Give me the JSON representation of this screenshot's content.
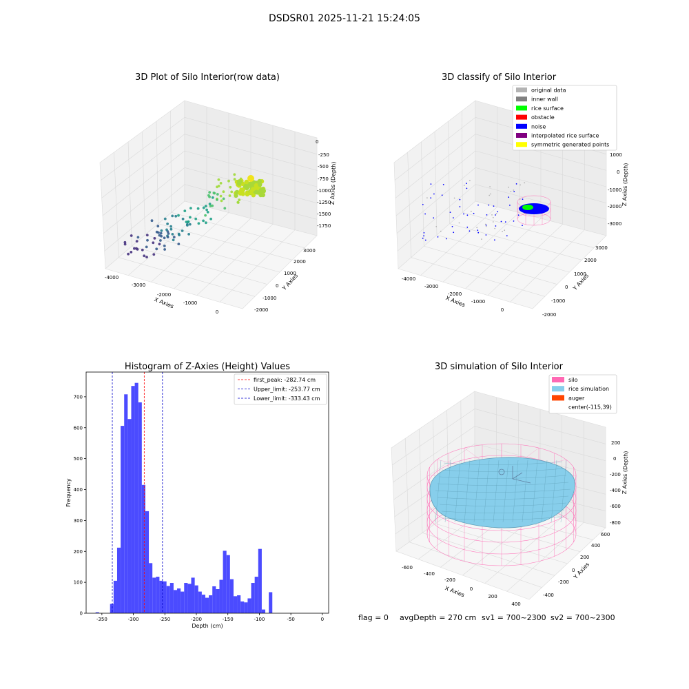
{
  "suptitle": "DSDSR01 2025-11-21 15:24:05",
  "status": {
    "flag": "flag = 0",
    "avg_depth": "avgDepth = 270 cm",
    "sv1": "sv1 = 700~2300",
    "sv2": "sv2 = 700~2300"
  },
  "chart_data": [
    {
      "type": "scatter",
      "projection": "3d",
      "title": "3D Plot of Silo Interior(row data)",
      "xlabel": "X Axies",
      "ylabel": "Y Axies",
      "zlabel": "Z Axies (Depth)",
      "x_ticks": [
        "-4000",
        "-3000",
        "-2000",
        "-1000",
        "0"
      ],
      "y_ticks": [
        "-2000",
        "-1000",
        "0",
        "1000",
        "2000",
        "3000"
      ],
      "z_ticks": [
        "0",
        "-250",
        "-500",
        "-750",
        "-1000",
        "-1250",
        "-1500",
        "-1750"
      ],
      "colormap": "viridis",
      "grid": true
    },
    {
      "type": "scatter",
      "projection": "3d",
      "title": "3D classify of Silo Interior",
      "xlabel": "X Axies",
      "ylabel": "Y Axies",
      "zlabel": "Z Axies (Depth)",
      "x_ticks": [
        "-4000",
        "-3000",
        "-2000",
        "-1000",
        "0"
      ],
      "y_ticks": [
        "-2000",
        "-1000",
        "0",
        "1000",
        "2000",
        "3000"
      ],
      "z_ticks": [
        "1000",
        "0",
        "-1000",
        "-2000",
        "-3000"
      ],
      "legend_position": "top-right",
      "legend": [
        {
          "label": "original data",
          "color": "#b3b3b3"
        },
        {
          "label": "inner wall",
          "color": "#808080"
        },
        {
          "label": "rice surface",
          "color": "#00ff00"
        },
        {
          "label": "obstacle",
          "color": "#ff0000"
        },
        {
          "label": "noise",
          "color": "#0000ff"
        },
        {
          "label": "interpolated rice surface",
          "color": "#800080"
        },
        {
          "label": "symmetric generated points",
          "color": "#ffff00"
        }
      ],
      "grid": true
    },
    {
      "type": "bar",
      "title": "Histogram of Z-Axies (Height) Values",
      "xlabel": "Depth (cm)",
      "ylabel": "Frequency",
      "xlim": [
        -375,
        10
      ],
      "ylim": [
        0,
        780
      ],
      "x_ticks": [
        -350,
        -300,
        -250,
        -200,
        -150,
        -100,
        -50,
        0
      ],
      "y_ticks": [
        0,
        100,
        200,
        300,
        400,
        500,
        600,
        700
      ],
      "bin_start": -337,
      "bin_width": 5.6,
      "values": [
        30,
        105,
        212,
        606,
        708,
        628,
        735,
        745,
        682,
        415,
        330,
        162,
        115,
        118,
        105,
        103,
        88,
        98,
        75,
        80,
        70,
        98,
        95,
        115,
        90,
        70,
        60,
        50,
        58,
        87,
        78,
        108,
        202,
        188,
        110,
        55,
        58,
        38,
        35,
        48,
        98,
        118,
        208,
        12,
        0,
        68
      ],
      "extra_bins": [
        {
          "x": -360,
          "value": 3
        }
      ],
      "bar_color": "#4b4bff",
      "vlines": [
        {
          "label": "first_peak: -282.74 cm",
          "x": -282.74,
          "color": "#ff0000"
        },
        {
          "label": "Upper_limit: -253.77 cm",
          "x": -253.77,
          "color": "#0000cc"
        },
        {
          "label": "Lower_limit: -333.43 cm",
          "x": -333.43,
          "color": "#0000cc"
        }
      ],
      "legend_position": "top-right",
      "grid": false
    },
    {
      "type": "surface",
      "projection": "3d",
      "title": "3D simulation of Silo Interior",
      "xlabel": "X Axies",
      "ylabel": "Y Axies",
      "zlabel": "Z Axies (Depth)",
      "x_ticks": [
        "-600",
        "-400",
        "-200",
        "0",
        "200",
        "400"
      ],
      "y_ticks": [
        "-400",
        "-200",
        "0",
        "200",
        "400",
        "600"
      ],
      "z_ticks": [
        "200",
        "0",
        "-200",
        "-400",
        "-600",
        "-800"
      ],
      "legend_position": "top-right",
      "legend": [
        {
          "label": "silo",
          "color": "#ff69b4"
        },
        {
          "label": "rice simulation",
          "color": "#87ceeb"
        },
        {
          "label": "auger",
          "color": "#ff4500"
        },
        {
          "label": "center(-115,39)",
          "color": ""
        }
      ],
      "grid": true
    }
  ]
}
